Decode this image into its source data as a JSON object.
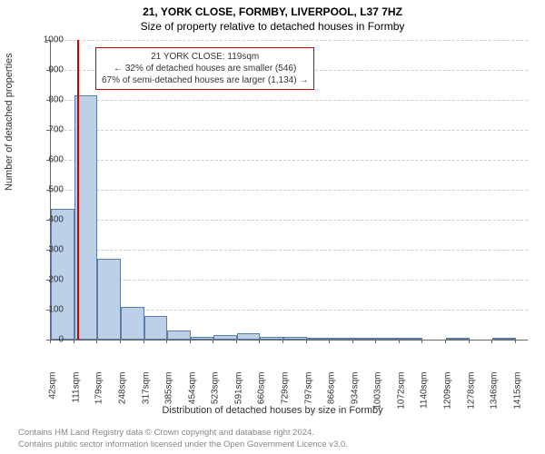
{
  "title_line1": "21, YORK CLOSE, FORMBY, LIVERPOOL, L37 7HZ",
  "title_line2": "Size of property relative to detached houses in Formby",
  "y_axis_label": "Number of detached properties",
  "x_axis_label": "Distribution of detached houses by size in Formby",
  "chart": {
    "type": "histogram",
    "ylim": [
      0,
      1000
    ],
    "ytick_step": 100,
    "xlim": [
      42,
      1450
    ],
    "x_ticks": [
      42,
      111,
      179,
      248,
      317,
      385,
      454,
      523,
      591,
      660,
      729,
      797,
      866,
      934,
      1003,
      1072,
      1140,
      1209,
      1278,
      1346,
      1415
    ],
    "x_tick_suffix": "sqm",
    "bar_fill": "#bcd0e8",
    "bar_stroke": "#5b7ea8",
    "grid_color": "#cccccc",
    "background_color": "#ffffff",
    "marker_color": "#cc0000",
    "marker_x": 119,
    "bars": [
      {
        "x0": 42,
        "x1": 111,
        "count": 435
      },
      {
        "x0": 111,
        "x1": 179,
        "count": 815
      },
      {
        "x0": 179,
        "x1": 248,
        "count": 270
      },
      {
        "x0": 248,
        "x1": 317,
        "count": 110
      },
      {
        "x0": 317,
        "x1": 385,
        "count": 80
      },
      {
        "x0": 385,
        "x1": 454,
        "count": 30
      },
      {
        "x0": 454,
        "x1": 523,
        "count": 10
      },
      {
        "x0": 523,
        "x1": 591,
        "count": 15
      },
      {
        "x0": 591,
        "x1": 660,
        "count": 20
      },
      {
        "x0": 660,
        "x1": 729,
        "count": 8
      },
      {
        "x0": 729,
        "x1": 797,
        "count": 10
      },
      {
        "x0": 797,
        "x1": 866,
        "count": 4
      },
      {
        "x0": 866,
        "x1": 934,
        "count": 6
      },
      {
        "x0": 934,
        "x1": 1003,
        "count": 4
      },
      {
        "x0": 1003,
        "x1": 1072,
        "count": 2
      },
      {
        "x0": 1072,
        "x1": 1140,
        "count": 2
      },
      {
        "x0": 1140,
        "x1": 1209,
        "count": 0
      },
      {
        "x0": 1209,
        "x1": 1278,
        "count": 2
      },
      {
        "x0": 1278,
        "x1": 1346,
        "count": 0
      },
      {
        "x0": 1346,
        "x1": 1415,
        "count": 2
      }
    ]
  },
  "annotation": {
    "line1": "21 YORK CLOSE: 119sqm",
    "line2": "← 32% of detached houses are smaller (546)",
    "line3": "67% of semi-detached houses are larger (1,134) →",
    "border_color": "#cc0000",
    "font_size": 10
  },
  "footer_line1": "Contains HM Land Registry data © Crown copyright and database right 2024.",
  "footer_line2": "Contains public sector information licensed under the Open Government Licence v3.0."
}
